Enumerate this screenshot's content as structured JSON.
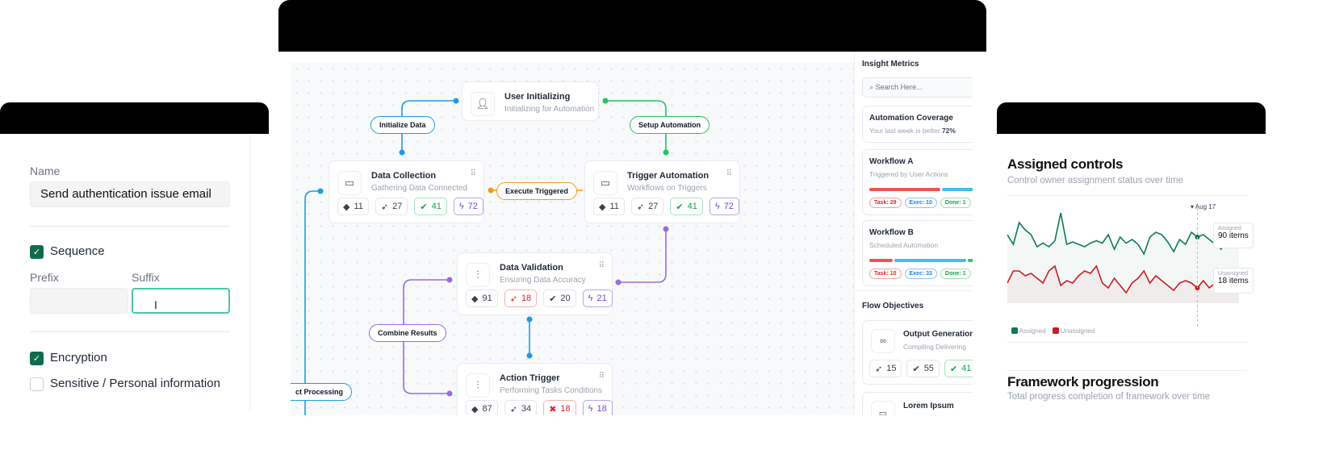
{
  "left_panel": {
    "name_label": "Name",
    "name_value": "Send authentication issue email",
    "sequence_label": "Sequence",
    "sequence_checked": true,
    "prefix_label": "Prefix",
    "prefix_value": "",
    "suffix_label": "Suffix",
    "suffix_value": "",
    "encryption_label": "Encryption",
    "encryption_checked": true,
    "sensitive_label": "Sensitive / Personal information",
    "sensitive_checked": false
  },
  "flow": {
    "nodes": [
      {
        "title": "User Initializing",
        "subtitle": "Initializing for Automation",
        "icon": "user-icon"
      },
      {
        "title": "Data Collection",
        "subtitle": "Gathering Data Connected",
        "icon": "browser-icon",
        "chips": [
          "11",
          "27",
          "41",
          "72"
        ]
      },
      {
        "title": "Trigger Automation",
        "subtitle": "Workflows on Triggers",
        "icon": "browser-icon",
        "chips": [
          "11",
          "27",
          "41",
          "72"
        ]
      },
      {
        "title": "Data Validation",
        "subtitle": "Ensuring Data Accuracy",
        "icon": "tree-icon",
        "chips": [
          "91",
          "18",
          "20",
          "21"
        ]
      },
      {
        "title": "Action Trigger",
        "subtitle": "Performing Tasks Conditions",
        "icon": "tree-icon",
        "chips": [
          "87",
          "34",
          "18",
          "18"
        ]
      }
    ],
    "edges": {
      "initialize": "Initialize Data",
      "setup": "Setup Automation",
      "execute": "Execute Triggered",
      "combine": "Combine Results",
      "processing": "ct Processing"
    },
    "colors": {
      "blue": "#1e9be0",
      "green": "#22c55e",
      "orange": "#f59e0b",
      "purple": "#9b6be0"
    }
  },
  "sidebar": {
    "insight_title": "Insight Metrics",
    "search_placeholder": "Search Here...",
    "coverage": {
      "title": "Automation Coverage",
      "subtitle": "Your last week is better",
      "value": "72%"
    },
    "workflow_a": {
      "title": "Workflow A",
      "subtitle": "Triggered by User Actions",
      "task": "Task: 29",
      "exec": "Exec: 10",
      "done": "Done: 1"
    },
    "workflow_b": {
      "title": "Workflow B",
      "subtitle": "Scheduled Automation",
      "task": "Task: 10",
      "exec": "Exec: 33",
      "done": "Done: 1"
    },
    "objectives_title": "Flow Objectives",
    "output": {
      "title": "Output Generation",
      "subtitle": "Compiling Delivering",
      "chips": [
        "15",
        "55",
        "41"
      ]
    },
    "lorem": {
      "title": "Lorem Ipsum"
    }
  },
  "chart_panel": {
    "title": "Assigned controls",
    "subtitle": "Control owner assignment status over time",
    "framework_title": "Framework progression",
    "framework_subtitle": "Total progress completion of framework over time"
  },
  "chart_data": {
    "type": "line",
    "title": "Assigned controls",
    "marker_label": "Aug 17",
    "legend_position": "bottom-left",
    "grid": false,
    "tooltip": {
      "assigned": "90 items",
      "assigned_label": "Assigned",
      "unassigned": "18 items",
      "unassigned_label": "Unassigned"
    },
    "series": [
      {
        "name": "Assigned",
        "color": "#0f7a55",
        "values": [
          70,
          62,
          80,
          74,
          70,
          60,
          63,
          60,
          65,
          88,
          62,
          64,
          62,
          60,
          63,
          65,
          63,
          70,
          58,
          68,
          63,
          66,
          62,
          54,
          68,
          72,
          70,
          64,
          56,
          66,
          62,
          72,
          68,
          70,
          66,
          62,
          58,
          66,
          62,
          60
        ]
      },
      {
        "name": "Unassigned",
        "color": "#c81d25",
        "values": [
          30,
          40,
          40,
          36,
          38,
          34,
          30,
          40,
          44,
          28,
          32,
          30,
          36,
          40,
          38,
          44,
          30,
          26,
          34,
          28,
          22,
          30,
          34,
          40,
          30,
          36,
          32,
          28,
          24,
          30,
          32,
          30,
          26,
          32,
          26,
          30,
          22,
          28,
          26,
          24
        ]
      }
    ]
  }
}
